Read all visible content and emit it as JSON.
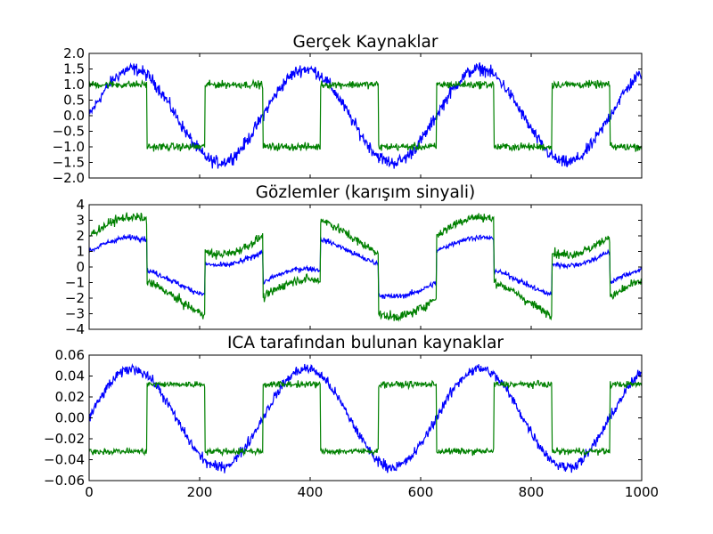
{
  "colors": {
    "series1": "#0000ff",
    "series2": "#008000",
    "axes": "#000000",
    "background": "#ffffff"
  },
  "chart_data": [
    {
      "type": "line",
      "title": "Gerçek Kaynaklar",
      "xlim": [
        0,
        1000
      ],
      "ylim": [
        -2.0,
        2.0
      ],
      "xticks": [
        0,
        200,
        400,
        600,
        800,
        1000
      ],
      "xtick_labels_visible": false,
      "yticks": [
        -2.0,
        -1.5,
        -1.0,
        -0.5,
        0.0,
        0.5,
        1.0,
        1.5,
        2.0
      ],
      "ytick_labels": [
        "−2.0",
        "−1.5",
        "−1.0",
        "−0.5",
        "0.0",
        "0.5",
        "1.0",
        "1.5",
        "2.0"
      ],
      "series": [
        {
          "kind": "sine",
          "color": "#0000ff",
          "amplitude": 1.5,
          "period": 314.16,
          "noise": 0.2
        },
        {
          "kind": "square",
          "color": "#008000",
          "amplitude": 1.0,
          "half_period": 104.7,
          "noise": 0.12
        }
      ]
    },
    {
      "type": "line",
      "title": "Gözlemler (karışım sinyali)",
      "xlim": [
        0,
        1000
      ],
      "ylim": [
        -4,
        4
      ],
      "xticks": [
        0,
        200,
        400,
        600,
        800,
        1000
      ],
      "xtick_labels_visible": false,
      "yticks": [
        -4,
        -3,
        -2,
        -1,
        0,
        1,
        2,
        3,
        4
      ],
      "ytick_labels": [
        "−4",
        "−3",
        "−2",
        "−1",
        "0",
        "1",
        "2",
        "3",
        "4"
      ],
      "series": [
        {
          "kind": "mix",
          "color": "#0000ff",
          "weights": [
            0.6,
            1.0
          ],
          "noise": 0.2
        },
        {
          "kind": "mix",
          "color": "#008000",
          "weights": [
            0.8,
            2.0
          ],
          "noise": 0.2
        }
      ]
    },
    {
      "type": "line",
      "title": "ICA tarafından bulunan kaynaklar",
      "xlim": [
        0,
        1000
      ],
      "ylim": [
        -0.06,
        0.06
      ],
      "xticks": [
        0,
        200,
        400,
        600,
        800,
        1000
      ],
      "xtick_labels": [
        "0",
        "200",
        "400",
        "600",
        "800",
        "1000"
      ],
      "xtick_labels_visible": true,
      "yticks": [
        -0.06,
        -0.04,
        -0.02,
        0.0,
        0.02,
        0.04,
        0.06
      ],
      "ytick_labels": [
        "−0.06",
        "−0.04",
        "−0.02",
        "0.00",
        "0.02",
        "0.04",
        "0.06"
      ],
      "series": [
        {
          "kind": "sine",
          "color": "#0000ff",
          "amplitude": 0.047,
          "period": 314.16,
          "noise": 0.005
        },
        {
          "kind": "square",
          "color": "#008000",
          "amplitude": -0.032,
          "half_period": 104.7,
          "noise": 0.003
        }
      ]
    }
  ]
}
